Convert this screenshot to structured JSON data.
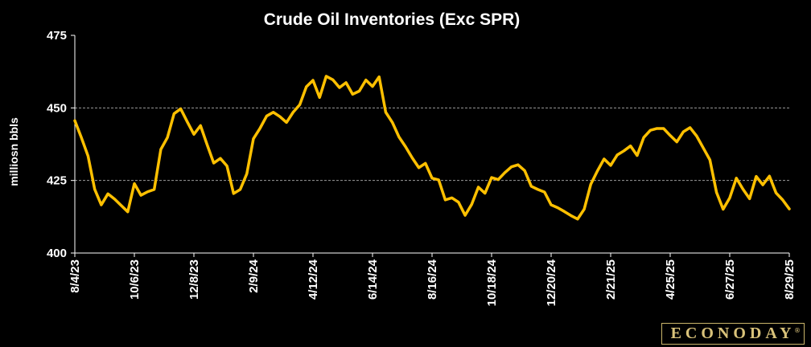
{
  "logo": {
    "text": "ECONODAY",
    "mark": "®"
  },
  "colors": {
    "background": "#000000",
    "line": "#ffc000",
    "grid": "#9a9a9a",
    "axis": "#ffffff",
    "text": "#ffffff"
  },
  "chart_data": {
    "type": "line",
    "title": "Crude Oil Inventories (Exc SPR)",
    "xlabel": "",
    "ylabel": "milliosn bbls",
    "ylim": [
      400,
      475
    ],
    "yticks": [
      400,
      425,
      450,
      475
    ],
    "grid": true,
    "legend": "none",
    "xtick_labels": [
      "8/4/23",
      "10/6/23",
      "12/8/23",
      "2/9/24",
      "4/12/24",
      "6/14/24",
      "8/16/24",
      "10/18/24",
      "12/20/24",
      "2/21/25",
      "4/25/25",
      "6/27/25",
      "8/29/25"
    ],
    "xtick_index": [
      0,
      9,
      18,
      27,
      36,
      45,
      54,
      63,
      72,
      81,
      90,
      99,
      108
    ],
    "series": [
      {
        "name": "",
        "values": [
          445.6,
          439.7,
          433.4,
          422.0,
          416.6,
          420.4,
          418.6,
          416.4,
          414.2,
          423.9,
          419.9,
          421.1,
          421.9,
          435.7,
          439.8,
          448.0,
          449.7,
          445.2,
          440.9,
          443.9,
          437.3,
          431.0,
          432.6,
          430.0,
          420.5,
          421.9,
          427.3,
          439.4,
          443.0,
          447.2,
          448.5,
          447.0,
          445.0,
          448.5,
          451.1,
          457.3,
          459.5,
          453.6,
          460.9,
          459.7,
          457.0,
          458.7,
          454.7,
          455.8,
          459.6,
          457.4,
          460.7,
          448.5,
          445.0,
          440.0,
          436.6,
          432.8,
          429.4,
          430.9,
          425.8,
          425.2,
          418.3,
          419.0,
          417.5,
          413.0,
          416.8,
          422.7,
          420.6,
          426.0,
          425.3,
          427.7,
          429.7,
          430.4,
          428.4,
          423.0,
          421.9,
          421.0,
          416.6,
          415.6,
          414.3,
          412.9,
          411.7,
          415.1,
          423.7,
          428.3,
          432.4,
          430.2,
          433.8,
          435.2,
          436.9,
          433.6,
          439.8,
          442.3,
          442.9,
          442.9,
          440.5,
          438.3,
          441.8,
          443.2,
          440.3,
          436.2,
          432.1,
          420.9,
          415.1,
          419.0,
          425.8,
          422.0,
          418.7,
          426.4,
          423.5,
          426.5,
          420.7,
          418.3,
          415.2
        ]
      }
    ]
  }
}
